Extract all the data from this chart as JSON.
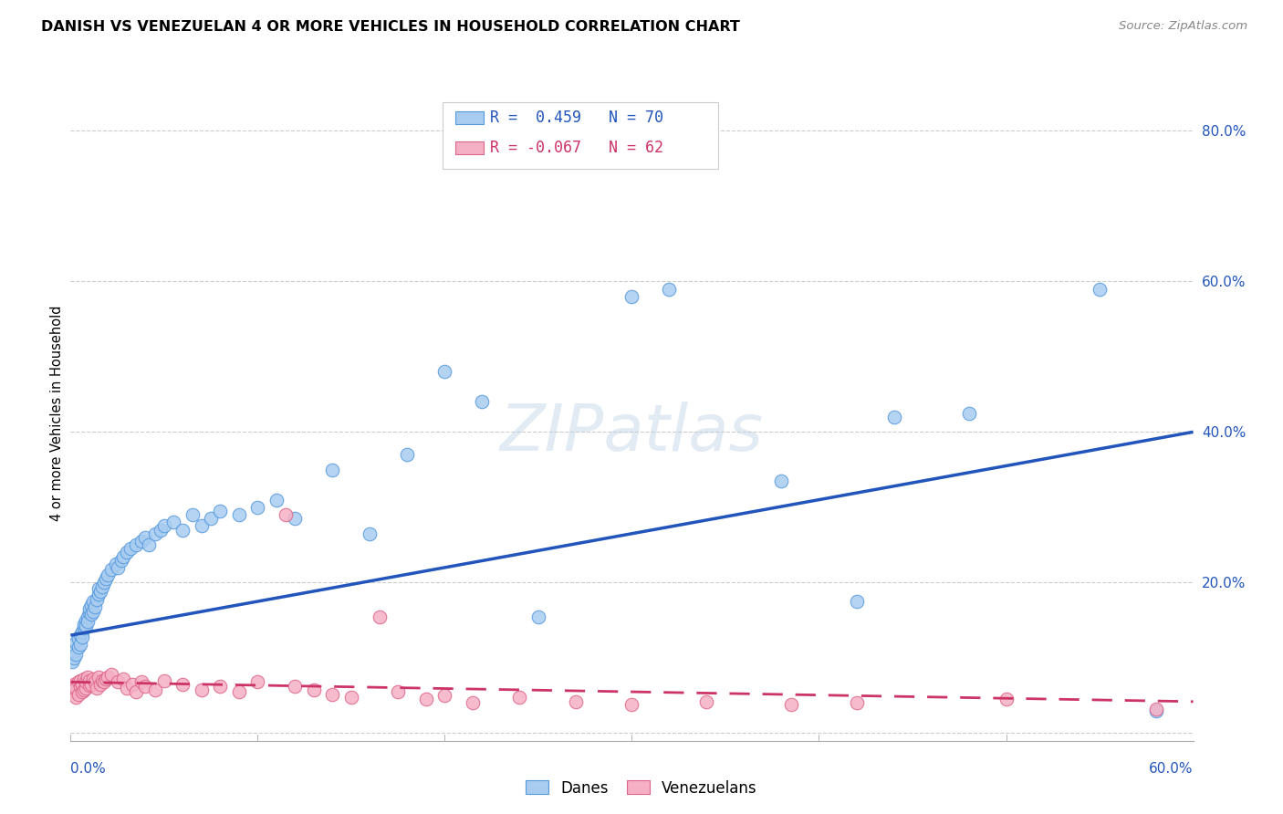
{
  "title": "DANISH VS VENEZUELAN 4 OR MORE VEHICLES IN HOUSEHOLD CORRELATION CHART",
  "source": "Source: ZipAtlas.com",
  "ylabel": "4 or more Vehicles in Household",
  "xlim": [
    0.0,
    0.6
  ],
  "ylim": [
    -0.01,
    0.86
  ],
  "danes_color": "#A8CCF0",
  "danes_edge_color": "#5599DD",
  "venezuelans_color": "#F5B0C5",
  "venezuelans_edge_color": "#DD6688",
  "danes_line_color": "#2255BB",
  "venezuelans_line_color": "#CC3366",
  "danes_R": "0.459",
  "danes_N": "70",
  "venezuelans_R": "-0.067",
  "venezuelans_N": "62",
  "danes_line_x0": 0.0,
  "danes_line_y0": 0.13,
  "danes_line_x1": 0.6,
  "danes_line_y1": 0.4,
  "venezuelans_line_x0": 0.0,
  "venezuelans_line_y0": 0.068,
  "venezuelans_line_x1": 0.6,
  "venezuelans_line_y1": 0.042,
  "danes_x": [
    0.001,
    0.002,
    0.002,
    0.003,
    0.003,
    0.004,
    0.004,
    0.005,
    0.005,
    0.006,
    0.006,
    0.007,
    0.007,
    0.008,
    0.008,
    0.009,
    0.009,
    0.01,
    0.01,
    0.011,
    0.011,
    0.012,
    0.012,
    0.013,
    0.014,
    0.015,
    0.015,
    0.016,
    0.017,
    0.018,
    0.019,
    0.02,
    0.022,
    0.024,
    0.025,
    0.027,
    0.028,
    0.03,
    0.032,
    0.035,
    0.038,
    0.04,
    0.042,
    0.045,
    0.048,
    0.05,
    0.055,
    0.06,
    0.065,
    0.07,
    0.075,
    0.08,
    0.09,
    0.1,
    0.11,
    0.12,
    0.14,
    0.16,
    0.18,
    0.2,
    0.22,
    0.25,
    0.3,
    0.32,
    0.38,
    0.42,
    0.44,
    0.48,
    0.55,
    0.58
  ],
  "danes_y": [
    0.095,
    0.1,
    0.11,
    0.105,
    0.12,
    0.115,
    0.125,
    0.13,
    0.118,
    0.135,
    0.128,
    0.14,
    0.145,
    0.15,
    0.142,
    0.155,
    0.148,
    0.16,
    0.165,
    0.158,
    0.17,
    0.162,
    0.175,
    0.168,
    0.178,
    0.185,
    0.192,
    0.188,
    0.195,
    0.2,
    0.205,
    0.21,
    0.218,
    0.225,
    0.22,
    0.23,
    0.235,
    0.24,
    0.245,
    0.25,
    0.255,
    0.26,
    0.25,
    0.265,
    0.27,
    0.275,
    0.28,
    0.27,
    0.29,
    0.275,
    0.285,
    0.295,
    0.29,
    0.3,
    0.31,
    0.285,
    0.35,
    0.265,
    0.37,
    0.48,
    0.44,
    0.155,
    0.58,
    0.59,
    0.335,
    0.175,
    0.42,
    0.425,
    0.59,
    0.03
  ],
  "venezuelans_x": [
    0.001,
    0.001,
    0.002,
    0.002,
    0.003,
    0.003,
    0.004,
    0.004,
    0.005,
    0.005,
    0.006,
    0.006,
    0.007,
    0.007,
    0.008,
    0.008,
    0.009,
    0.01,
    0.01,
    0.011,
    0.012,
    0.013,
    0.014,
    0.015,
    0.016,
    0.017,
    0.018,
    0.019,
    0.02,
    0.022,
    0.025,
    0.028,
    0.03,
    0.033,
    0.035,
    0.038,
    0.04,
    0.045,
    0.05,
    0.06,
    0.07,
    0.08,
    0.09,
    0.1,
    0.115,
    0.12,
    0.13,
    0.14,
    0.15,
    0.165,
    0.175,
    0.19,
    0.2,
    0.215,
    0.24,
    0.27,
    0.3,
    0.34,
    0.385,
    0.42,
    0.5,
    0.58
  ],
  "venezuelans_y": [
    0.058,
    0.062,
    0.055,
    0.065,
    0.048,
    0.06,
    0.052,
    0.068,
    0.062,
    0.07,
    0.055,
    0.065,
    0.058,
    0.072,
    0.06,
    0.068,
    0.075,
    0.063,
    0.07,
    0.065,
    0.072,
    0.068,
    0.06,
    0.075,
    0.065,
    0.07,
    0.068,
    0.072,
    0.075,
    0.078,
    0.068,
    0.072,
    0.06,
    0.065,
    0.055,
    0.068,
    0.062,
    0.058,
    0.07,
    0.065,
    0.058,
    0.062,
    0.055,
    0.068,
    0.29,
    0.062,
    0.058,
    0.052,
    0.048,
    0.155,
    0.055,
    0.045,
    0.05,
    0.04,
    0.048,
    0.042,
    0.038,
    0.042,
    0.038,
    0.04,
    0.045,
    0.032
  ]
}
